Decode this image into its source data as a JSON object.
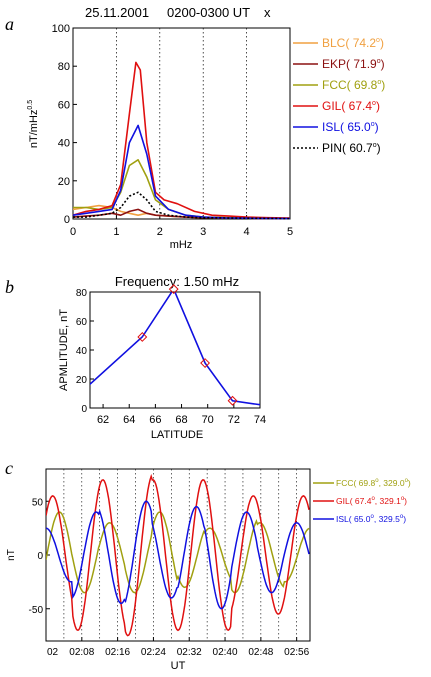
{
  "panels": [
    {
      "letter": "a",
      "title_date": "25.11.2001",
      "title_time": "0200-0300 UT",
      "title_mark": "x",
      "chart_data": {
        "type": "line",
        "xlabel": "mHz",
        "ylabel": "nT/mHz",
        "ylabel_sup": "0.5",
        "xlim": [
          0,
          5
        ],
        "ylim": [
          0,
          100
        ],
        "xticks": [
          "0",
          "1",
          "2",
          "3",
          "4",
          "5"
        ],
        "yticks": [
          "0",
          "20",
          "40",
          "60",
          "80",
          "100"
        ],
        "vgrid": [
          1,
          2,
          3,
          4
        ],
        "legend_position": "right",
        "series": [
          {
            "name": "BLC",
            "lat": "74.2",
            "color": "#f0a040",
            "dash": "",
            "x": [
              0,
              0.3,
              0.6,
              0.9,
              1.1,
              1.3,
              1.5,
              1.7,
              1.9,
              2.2,
              2.6,
              3.0,
              3.5,
              4.0,
              4.5,
              5.0
            ],
            "y": [
              5,
              6,
              7,
              6,
              4,
              3,
              2,
              3,
              2,
              1.5,
              1,
              0.7,
              0.5,
              0.4,
              0.3,
              0.2
            ]
          },
          {
            "name": "EKP",
            "lat": "71.9",
            "color": "#8b1010",
            "dash": "",
            "x": [
              0,
              0.3,
              0.6,
              0.9,
              1.1,
              1.3,
              1.5,
              1.7,
              1.9,
              2.2,
              2.6,
              3.0,
              3.5,
              4.0,
              4.5,
              5.0
            ],
            "y": [
              1,
              1.5,
              2,
              3,
              2,
              4,
              5,
              3,
              2,
              1.5,
              1,
              0.7,
              0.5,
              0.4,
              0.3,
              0.2
            ]
          },
          {
            "name": "FCC",
            "lat": "69.8",
            "color": "#a0a010",
            "dash": "",
            "x": [
              0,
              0.3,
              0.6,
              0.9,
              1.1,
              1.3,
              1.5,
              1.7,
              1.9,
              2.2,
              2.6,
              3.0,
              3.5,
              4.0,
              4.5,
              5.0
            ],
            "y": [
              6,
              6,
              5,
              6,
              14,
              28,
              31,
              22,
              10,
              5,
              2,
              1,
              0.8,
              0.6,
              0.4,
              0.3
            ]
          },
          {
            "name": "GIL",
            "lat": "67.4",
            "color": "#e01010",
            "dash": "",
            "x": [
              0,
              0.3,
              0.6,
              0.9,
              1.1,
              1.3,
              1.45,
              1.55,
              1.7,
              1.9,
              2.1,
              2.4,
              2.8,
              3.2,
              3.6,
              4.0,
              4.5,
              5.0
            ],
            "y": [
              2,
              4,
              5,
              7,
              18,
              55,
              82,
              78,
              40,
              14,
              10,
              8,
              4,
              2,
              1.5,
              1,
              0.7,
              0.5
            ]
          },
          {
            "name": "ISL",
            "lat": "65.0",
            "color": "#1010e0",
            "dash": "",
            "x": [
              0,
              0.3,
              0.6,
              0.9,
              1.1,
              1.3,
              1.5,
              1.7,
              1.9,
              2.2,
              2.6,
              3.0,
              3.5,
              4.0,
              4.5,
              5.0
            ],
            "y": [
              2,
              3,
              4,
              5,
              15,
              40,
              49,
              34,
              12,
              5,
              2,
              1,
              0.6,
              0.4,
              0.3,
              0.2
            ]
          },
          {
            "name": "PIN",
            "lat": "60.7",
            "color": "#000000",
            "dash": "2,2",
            "x": [
              0,
              0.3,
              0.6,
              0.9,
              1.1,
              1.3,
              1.5,
              1.7,
              1.9,
              2.2,
              2.6,
              3.0,
              3.5,
              4.0,
              4.5,
              5.0
            ],
            "y": [
              1,
              1,
              2,
              3,
              6,
              12,
              14,
              10,
              4,
              2,
              1,
              0.7,
              0.5,
              0.4,
              0.3,
              0.2
            ]
          }
        ]
      }
    },
    {
      "letter": "b",
      "chart_data": {
        "type": "line",
        "title": "Frequency: 1.50 mHz",
        "xlabel": "LATITUDE",
        "ylabel": "APMLITUDE, nT",
        "xlim": [
          61,
          74
        ],
        "ylim": [
          0,
          80
        ],
        "xticks": [
          "62",
          "64",
          "66",
          "68",
          "70",
          "72",
          "74"
        ],
        "yticks": [
          "0",
          "20",
          "40",
          "60",
          "80"
        ],
        "series": [
          {
            "color": "#1010e0",
            "marker_color": "#e01010",
            "x": [
              60.7,
              65.0,
              67.4,
              69.8,
              71.9,
              74.2
            ],
            "y": [
              14,
              49,
              82,
              31,
              5,
              2
            ]
          }
        ]
      }
    },
    {
      "letter": "c",
      "chart_data": {
        "type": "line",
        "xlabel": "UT",
        "ylabel": "nT",
        "xlim": [
          2.0,
          2.983
        ],
        "ylim": [
          -80,
          80
        ],
        "xticks": [
          "02",
          "02:08",
          "02:16",
          "02:24",
          "02:32",
          "02:40",
          "02:48",
          "02:56"
        ],
        "yticks": [
          "-50",
          "0",
          "50"
        ],
        "vgrid_minutes": [
          4,
          8,
          12,
          16,
          20,
          24,
          28,
          32,
          36,
          40,
          44,
          48,
          52,
          56
        ],
        "series": [
          {
            "name": "FCC",
            "lat": "69.8",
            "lon": "329.0",
            "color": "#a0a010",
            "amplitude": [
              40,
              35,
              30,
              35,
              40,
              30,
              25,
              35,
              30,
              25
            ],
            "period_min": 11.2,
            "phase_min": 3.0
          },
          {
            "name": "GIL",
            "lat": "67.4",
            "lon": "329.1",
            "color": "#e01010",
            "amplitude": [
              55,
              70,
              70,
              75,
              70,
              70,
              70,
              55,
              55,
              55
            ],
            "period_min": 11.2,
            "phase_min": 1.5
          },
          {
            "name": "ISL",
            "lat": "65.0",
            "lon": "329.5",
            "color": "#1010e0",
            "amplitude": [
              25,
              40,
              45,
              50,
              40,
              45,
              50,
              40,
              35,
              30
            ],
            "period_min": 11.2,
            "phase_min": 0.0
          }
        ]
      }
    }
  ]
}
